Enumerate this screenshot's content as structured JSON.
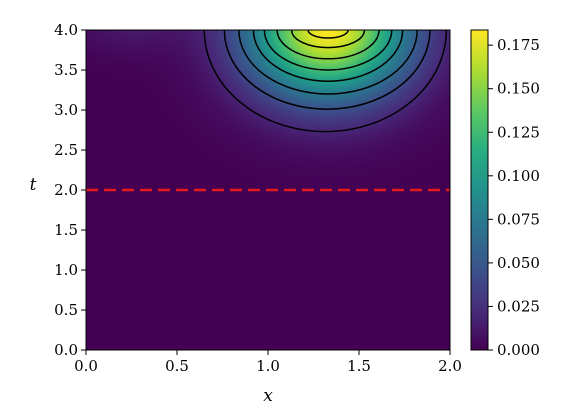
{
  "chart_data": {
    "type": "heatmap",
    "title": "",
    "xlabel": "x",
    "ylabel": "t",
    "xlim": [
      0.0,
      2.0
    ],
    "ylim": [
      0.0,
      4.0
    ],
    "x_ticks": [
      0.0,
      0.5,
      1.0,
      1.5,
      2.0
    ],
    "x_tick_labels": [
      "0.0",
      "0.5",
      "1.0",
      "1.5",
      "2.0"
    ],
    "y_ticks": [
      0.0,
      0.5,
      1.0,
      1.5,
      2.0,
      2.5,
      3.0,
      3.5,
      4.0
    ],
    "y_tick_labels": [
      "0.0",
      "0.5",
      "1.0",
      "1.5",
      "2.0",
      "2.5",
      "3.0",
      "3.5",
      "4.0"
    ],
    "colormap": "viridis",
    "color_range": [
      0.0,
      0.1837
    ],
    "colorbar_ticks": [
      0.0,
      0.025,
      0.05,
      0.075,
      0.1,
      0.125,
      0.15,
      0.175
    ],
    "colorbar_tick_labels": [
      "0.000",
      "0.025",
      "0.050",
      "0.075",
      "0.100",
      "0.125",
      "0.150",
      "0.175"
    ],
    "peak": {
      "x": 1.33,
      "t": 4.0,
      "value": 0.183
    },
    "contour_lines": [
      {
        "apex_t": 2.73,
        "x_range_at_top": [
          0.65,
          1.98
        ]
      },
      {
        "apex_t": 3.01,
        "x_range_at_top": [
          0.76,
          1.89
        ]
      },
      {
        "apex_t": 3.2,
        "x_range_at_top": [
          0.84,
          1.82
        ]
      },
      {
        "apex_t": 3.36,
        "x_range_at_top": [
          0.92,
          1.74
        ]
      },
      {
        "apex_t": 3.5,
        "x_range_at_top": [
          0.98,
          1.68
        ]
      },
      {
        "apex_t": 3.64,
        "x_range_at_top": [
          1.05,
          1.61
        ]
      },
      {
        "apex_t": 3.78,
        "x_range_at_top": [
          1.13,
          1.53
        ]
      },
      {
        "apex_t": 3.9,
        "x_range_at_top": [
          1.22,
          1.44
        ]
      }
    ],
    "reference_line": {
      "t": 2.0,
      "color": "#e41a1c",
      "style": "dashed"
    }
  }
}
